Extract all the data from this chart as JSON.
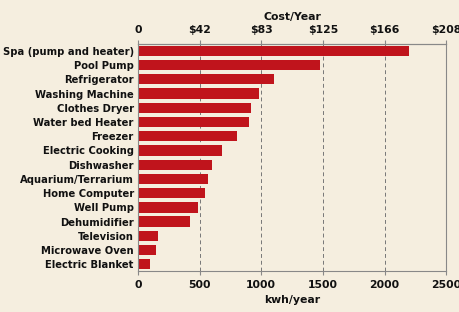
{
  "categories": [
    "Electric Blanket",
    "Microwave Oven",
    "Television",
    "Dehumidifier",
    "Well Pump",
    "Home Computer",
    "Aquarium/Terrarium",
    "Dishwasher",
    "Electric Cooking",
    "Freezer",
    "Water bed Heater",
    "Clothes Dryer",
    "Washing Machine",
    "Refrigerator",
    "Pool Pump",
    "Spa (pump and heater)"
  ],
  "values": [
    100,
    150,
    160,
    420,
    490,
    540,
    570,
    600,
    680,
    800,
    900,
    920,
    980,
    1100,
    1480,
    2200
  ],
  "bar_color": "#c0141c",
  "background_color": "#f5eedf",
  "title_cost": "Cost/Year",
  "title_kwh": "kwh/year",
  "xlim": [
    0,
    2500
  ],
  "xticks_kwh": [
    0,
    500,
    1000,
    1500,
    2000,
    2500
  ],
  "cost_tick_labels": [
    "0",
    "$42",
    "$83",
    "$125",
    "$166",
    "$208"
  ],
  "cost_tick_positions": [
    0,
    500,
    1000,
    1500,
    2000,
    2500
  ],
  "gridline_positions": [
    500,
    1000,
    1500,
    2000,
    2500
  ],
  "grid_color": "#777777",
  "label_fontsize": 7.2,
  "tick_fontsize": 7.8,
  "bar_height": 0.72,
  "bar_gap": 0.28
}
